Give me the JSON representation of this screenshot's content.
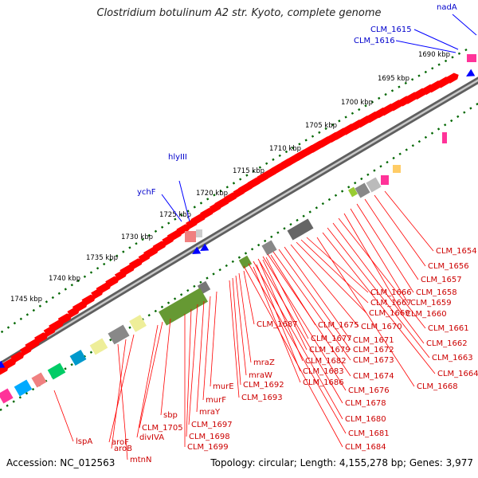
{
  "title": "Clostridium botulinum A2 str. Kyoto, complete genome",
  "accession": "Accession: NC_012563",
  "summary": "Topology: circular; Length: 4,155,278 bp; Genes: 3,977",
  "colors": {
    "forward_gene": "#ff0000",
    "reverse_gene": "#0000ff",
    "gene_label": "#cc0000",
    "reverse_label": "#0000cc",
    "tick": "#006600",
    "backbone": "#888888"
  },
  "ticks": [
    "1690 kbp",
    "1695 kbp",
    "1700 kbp",
    "1705 kbp",
    "1710 kbp",
    "1715 kbp",
    "1720 kbp",
    "1725 kbp",
    "1730 kbp",
    "1735 kbp",
    "1740 kbp",
    "1745 kbp"
  ],
  "blue_labels": [
    {
      "text": "nadA"
    },
    {
      "text": "CLM_1615"
    },
    {
      "text": "CLM_1616"
    },
    {
      "text": "hlyIII"
    },
    {
      "text": "ychF"
    }
  ],
  "red_labels": [
    "CLM_1654",
    "CLM_1656",
    "CLM_1657",
    "CLM_1658",
    "CLM_1659",
    "CLM_1660",
    "CLM_1661",
    "CLM_1662",
    "CLM_1663",
    "CLM_1664",
    "CLM_1668",
    "CLM_1666",
    "CLM_1667",
    "CLM_1669",
    "CLM_1670",
    "CLM_1671",
    "CLM_1672",
    "CLM_1673",
    "CLM_1674",
    "CLM_1676",
    "CLM_1678",
    "CLM_1680",
    "CLM_1681",
    "CLM_1684",
    "CLM_1675",
    "CLM_1677",
    "CLM_1679",
    "CLM_1682",
    "CLM_1683",
    "CLM_1686",
    "CLM_1687",
    "mraZ",
    "mraW",
    "CLM_1692",
    "CLM_1693",
    "murE",
    "murF",
    "mraY",
    "CLM_1697",
    "CLM_1698",
    "CLM_1699",
    "sbp",
    "CLM_1705",
    "divIVA",
    "aroF",
    "aroB",
    "mtnN",
    "lspA"
  ]
}
